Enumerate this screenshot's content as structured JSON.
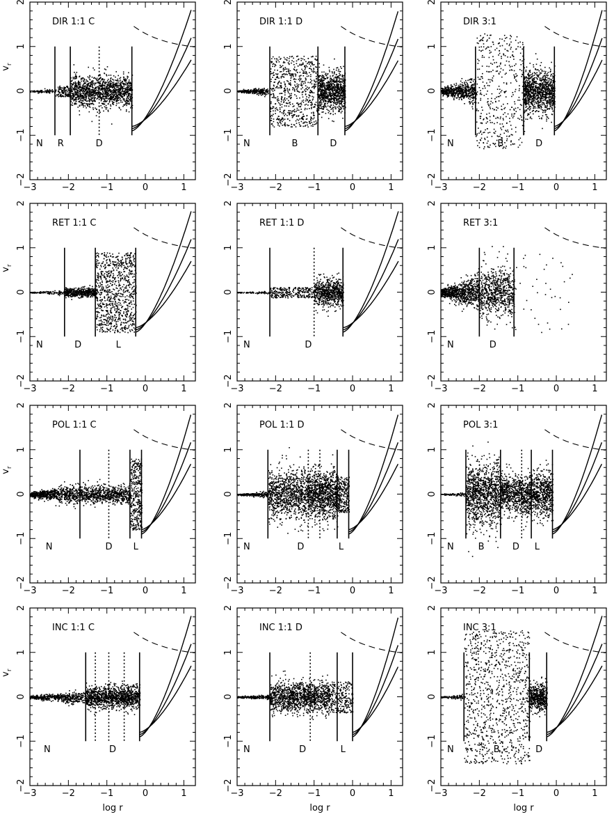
{
  "chart_data": {
    "type": "scatter",
    "x_label": "log r",
    "y_label": "v_r",
    "x_range": [
      -3,
      1.3
    ],
    "y_range": [
      -2,
      2
    ],
    "x_ticks": [
      -3,
      -2,
      -1,
      0,
      1
    ],
    "y_ticks": [
      -2,
      -1,
      0,
      1,
      2
    ],
    "panels": [
      {
        "id": "dir-11c",
        "title": "DIR 1:1 C",
        "solid": [
          -2.35,
          -1.95,
          -0.35
        ],
        "dotted": [
          -1.2
        ],
        "labels": [
          {
            "text": "N",
            "x": -2.75,
            "y": -1.25
          },
          {
            "text": "R",
            "x": -2.2,
            "y": -1.25
          },
          {
            "text": "D",
            "x": -1.2,
            "y": -1.25
          }
        ],
        "regions": [
          {
            "x": [
              -3,
              -2.35
            ],
            "amp": 0.06,
            "n": 80,
            "type": "core"
          },
          {
            "x": [
              -2.35,
              -1.95
            ],
            "amp": 0.12,
            "n": 120,
            "type": "sparse"
          },
          {
            "x": [
              -1.95,
              -0.35
            ],
            "amp": 0.35,
            "n": 1300,
            "type": "dense"
          }
        ],
        "branch_start": -0.35
      },
      {
        "id": "dir-11d",
        "title": "DIR 1:1 D",
        "solid": [
          -2.15,
          -0.9,
          -0.2
        ],
        "dotted": [],
        "labels": [
          {
            "text": "N",
            "x": -2.75,
            "y": -1.25
          },
          {
            "text": "B",
            "x": -1.5,
            "y": -1.25
          },
          {
            "text": "D",
            "x": -0.5,
            "y": -1.25
          }
        ],
        "regions": [
          {
            "x": [
              -3,
              -2.2
            ],
            "amp": 0.08,
            "n": 250,
            "type": "core"
          },
          {
            "x": [
              -2.15,
              -0.9
            ],
            "amp": 0.8,
            "n": 700,
            "type": "sparse"
          },
          {
            "x": [
              -0.9,
              -0.2
            ],
            "amp": 0.45,
            "n": 900,
            "type": "dense"
          }
        ],
        "branch_start": -0.2
      },
      {
        "id": "dir-31",
        "title": "DIR 3:1",
        "solid": [
          -2.1,
          -0.85,
          -0.05
        ],
        "dotted": [],
        "labels": [
          {
            "text": "N",
            "x": -2.75,
            "y": -1.25
          },
          {
            "text": "B",
            "x": -1.45,
            "y": -1.25
          },
          {
            "text": "D",
            "x": -0.45,
            "y": -1.25
          }
        ],
        "regions": [
          {
            "x": [
              -3,
              -2.1
            ],
            "amp": 0.3,
            "n": 600,
            "type": "core"
          },
          {
            "x": [
              -2.1,
              -0.85
            ],
            "amp": 1.3,
            "n": 450,
            "type": "sparse"
          },
          {
            "x": [
              -0.85,
              -0.05
            ],
            "amp": 0.5,
            "n": 1000,
            "type": "dense"
          }
        ],
        "branch_start": -0.05
      },
      {
        "id": "ret-11c",
        "title": "RET 1:1 C",
        "solid": [
          -2.1,
          -1.3,
          -0.25
        ],
        "dotted": [],
        "labels": [
          {
            "text": "N",
            "x": -2.75,
            "y": -1.25
          },
          {
            "text": "D",
            "x": -1.75,
            "y": -1.25
          },
          {
            "text": "L",
            "x": -0.7,
            "y": -1.25
          }
        ],
        "regions": [
          {
            "x": [
              -3,
              -2.1
            ],
            "amp": 0.05,
            "n": 120,
            "type": "core"
          },
          {
            "x": [
              -2.1,
              -1.3
            ],
            "amp": 0.1,
            "n": 500,
            "type": "dense"
          },
          {
            "x": [
              -1.3,
              -0.25
            ],
            "amp": 0.9,
            "n": 900,
            "type": "sparse"
          }
        ],
        "branch_start": -0.25
      },
      {
        "id": "ret-11d",
        "title": "RET 1:1 D",
        "solid": [
          -2.15,
          -0.25
        ],
        "dotted": [
          -1
        ],
        "labels": [
          {
            "text": "N",
            "x": -2.75,
            "y": -1.25
          },
          {
            "text": "D",
            "x": -1.15,
            "y": -1.25
          }
        ],
        "regions": [
          {
            "x": [
              -3,
              -2.15
            ],
            "amp": 0.03,
            "n": 80,
            "type": "core"
          },
          {
            "x": [
              -2.15,
              -1
            ],
            "amp": 0.12,
            "n": 260,
            "type": "sparse"
          },
          {
            "x": [
              -1,
              -0.25
            ],
            "amp": 0.3,
            "n": 700,
            "type": "dense"
          }
        ],
        "branch_start": -0.25
      },
      {
        "id": "ret-31",
        "title": "RET 3:1",
        "solid": [
          -2,
          -1.1
        ],
        "dotted": [],
        "labels": [
          {
            "text": "N",
            "x": -2.75,
            "y": -1.25
          },
          {
            "text": "D",
            "x": -1.65,
            "y": -1.25
          }
        ],
        "regions": [
          {
            "x": [
              -3,
              -2
            ],
            "amp": 0.4,
            "n": 800,
            "type": "core"
          },
          {
            "x": [
              -2,
              -1.1
            ],
            "amp": 0.55,
            "n": 700,
            "type": "dense"
          },
          {
            "x": [
              -1.1,
              0.4
            ],
            "amp": 0.9,
            "n": 40,
            "type": "sparse"
          }
        ],
        "branch_start": null
      },
      {
        "id": "pol-11c",
        "title": "POL 1:1 C",
        "solid": [
          -1.7,
          -0.4,
          -0.1
        ],
        "dotted": [
          -0.95
        ],
        "labels": [
          {
            "text": "N",
            "x": -2.5,
            "y": -1.25
          },
          {
            "text": "D",
            "x": -0.95,
            "y": -1.25
          },
          {
            "text": "L",
            "x": -0.25,
            "y": -1.25
          }
        ],
        "regions": [
          {
            "x": [
              -3,
              -1.7
            ],
            "amp": 0.25,
            "n": 700,
            "type": "core"
          },
          {
            "x": [
              -1.7,
              -0.4
            ],
            "amp": 0.2,
            "n": 700,
            "type": "dense"
          },
          {
            "x": [
              -0.4,
              -0.1
            ],
            "amp": 0.8,
            "n": 350,
            "type": "sparse"
          }
        ],
        "branch_start": -0.1
      },
      {
        "id": "pol-11d",
        "title": "POL 1:1 D",
        "solid": [
          -2.2,
          -0.4,
          -0.1
        ],
        "dotted": [
          -1.15,
          -0.85
        ],
        "labels": [
          {
            "text": "N",
            "x": -2.75,
            "y": -1.25
          },
          {
            "text": "D",
            "x": -1.35,
            "y": -1.25
          },
          {
            "text": "L",
            "x": -0.3,
            "y": -1.25
          }
        ],
        "regions": [
          {
            "x": [
              -3,
              -2.2
            ],
            "amp": 0.07,
            "n": 200,
            "type": "core"
          },
          {
            "x": [
              -2.2,
              -1.15
            ],
            "amp": 0.55,
            "n": 1000,
            "type": "dense"
          },
          {
            "x": [
              -1.15,
              -0.4
            ],
            "amp": 0.55,
            "n": 1000,
            "type": "dense"
          },
          {
            "x": [
              -0.4,
              -0.1
            ],
            "amp": 0.4,
            "n": 250,
            "type": "sparse"
          }
        ],
        "branch_start": -0.1
      },
      {
        "id": "pol-31",
        "title": "POL 3:1",
        "solid": [
          -2.35,
          -1.45,
          -0.65,
          -0.1
        ],
        "dotted": [
          -0.9
        ],
        "labels": [
          {
            "text": "N",
            "x": -2.75,
            "y": -1.25
          },
          {
            "text": "B",
            "x": -1.95,
            "y": -1.25
          },
          {
            "text": "D",
            "x": -1.05,
            "y": -1.25
          },
          {
            "text": "L",
            "x": -0.5,
            "y": -1.25
          }
        ],
        "regions": [
          {
            "x": [
              -3,
              -2.35
            ],
            "amp": 0.05,
            "n": 80,
            "type": "core"
          },
          {
            "x": [
              -2.35,
              -1.45
            ],
            "amp": 0.7,
            "n": 1100,
            "type": "dense"
          },
          {
            "x": [
              -1.45,
              -0.65
            ],
            "amp": 0.45,
            "n": 800,
            "type": "dense"
          },
          {
            "x": [
              -0.65,
              -0.1
            ],
            "amp": 0.5,
            "n": 600,
            "type": "dense"
          }
        ],
        "branch_start": -0.1
      },
      {
        "id": "inc-11c",
        "title": "INC 1:1 C",
        "solid": [
          -1.55,
          -0.15
        ],
        "dotted": [
          -1.3,
          -0.95,
          -0.55
        ],
        "labels": [
          {
            "text": "N",
            "x": -2.55,
            "y": -1.25
          },
          {
            "text": "D",
            "x": -0.85,
            "y": -1.25
          }
        ],
        "regions": [
          {
            "x": [
              -3,
              -1.55
            ],
            "amp": 0.15,
            "n": 500,
            "type": "core"
          },
          {
            "x": [
              -1.55,
              -0.15
            ],
            "amp": 0.25,
            "n": 1200,
            "type": "dense"
          }
        ],
        "branch_start": -0.15
      },
      {
        "id": "inc-11d",
        "title": "INC 1:1 D",
        "solid": [
          -2.15,
          -0.4,
          0
        ],
        "dotted": [
          -1.1
        ],
        "labels": [
          {
            "text": "N",
            "x": -2.75,
            "y": -1.25
          },
          {
            "text": "D",
            "x": -1.3,
            "y": -1.25
          },
          {
            "text": "L",
            "x": -0.25,
            "y": -1.25
          }
        ],
        "regions": [
          {
            "x": [
              -3,
              -2.15
            ],
            "amp": 0.06,
            "n": 200,
            "type": "core"
          },
          {
            "x": [
              -2.15,
              -0.6
            ],
            "amp": 0.35,
            "n": 1300,
            "type": "dense"
          },
          {
            "x": [
              -0.6,
              0
            ],
            "amp": 0.35,
            "n": 250,
            "type": "sparse"
          }
        ],
        "branch_start": 0
      },
      {
        "id": "inc-31",
        "title": "INC 3:1",
        "solid": [
          -2.4,
          -0.7,
          -0.25
        ],
        "dotted": [],
        "labels": [
          {
            "text": "N",
            "x": -2.75,
            "y": -1.25
          },
          {
            "text": "B",
            "x": -1.55,
            "y": -1.25
          },
          {
            "text": "D",
            "x": -0.45,
            "y": -1.25
          }
        ],
        "regions": [
          {
            "x": [
              -3,
              -2.4
            ],
            "amp": 0.06,
            "n": 90,
            "type": "core"
          },
          {
            "x": [
              -2.4,
              -0.7
            ],
            "amp": 1.5,
            "n": 1000,
            "type": "sparse"
          },
          {
            "x": [
              -0.7,
              -0.25
            ],
            "amp": 0.3,
            "n": 500,
            "type": "dense"
          }
        ],
        "branch_start": -0.25
      }
    ]
  }
}
